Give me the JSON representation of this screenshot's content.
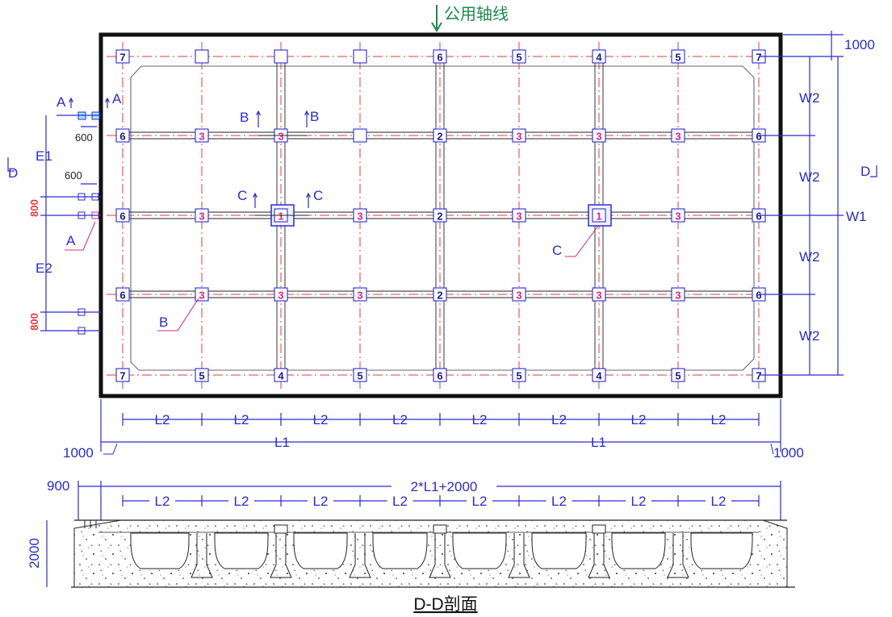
{
  "plan": {
    "common_axis_label": "公用轴线",
    "dims": {
      "top_margin": "1000",
      "left_margin": "1000",
      "right_margin": "1000",
      "w2": "W2",
      "w1": "W1",
      "l2": "L2",
      "l1": "L1",
      "e1": "E1",
      "e2": "E2",
      "pile_spacing": "600",
      "pile_offset": "800"
    },
    "section_marks": {
      "a": "A",
      "b": "B",
      "c": "C",
      "d": "D"
    },
    "grid_rows": [
      [
        "7",
        "",
        "",
        "",
        "6",
        "5",
        "4",
        "5",
        "7"
      ],
      [
        "6",
        "3",
        "3",
        "",
        "2",
        "3",
        "3",
        "3",
        "6"
      ],
      [
        "6",
        "3",
        "1",
        "3",
        "2",
        "3",
        "1",
        "3",
        "6"
      ],
      [
        "6",
        "3",
        "3",
        "3",
        "2",
        "3",
        "3",
        "3",
        "6"
      ],
      [
        "7",
        "5",
        "4",
        "5",
        "6",
        "5",
        "4",
        "5",
        "7"
      ]
    ],
    "type_colors": {
      "1": "#e0208a",
      "2": "#1a1a9a",
      "3": "#e0208a",
      "4": "#1a1a9a",
      "5": "#1a1a9a",
      "6": "#1a1a9a",
      "7": "#1a1a9a"
    }
  },
  "section": {
    "total_width": "2*L1+2000",
    "edge_width": "900",
    "depth": "2000",
    "l2": "L2",
    "title": "D-D剖面"
  }
}
